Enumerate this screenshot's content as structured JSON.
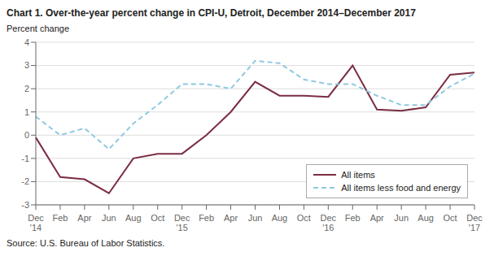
{
  "chart_data": {
    "type": "line",
    "title": "Chart 1. Over-the-year percent change in CPI-U, Detroit, December 2014–December 2017",
    "ylabel": "Percent change",
    "annotations": [
      "Source: U.S. Bureau of Labor Statistics."
    ],
    "categories": [
      "Dec\n'14",
      "Feb",
      "Apr",
      "Jun",
      "Aug",
      "Oct",
      "Dec\n'15",
      "Feb",
      "Apr",
      "Jun",
      "Aug",
      "Oct",
      "Dec\n'16",
      "Feb",
      "Apr",
      "Jun",
      "Aug",
      "Oct",
      "Dec\n'17"
    ],
    "series": [
      {
        "name": "All items",
        "color": "#7B2D42",
        "line_style": "solid",
        "values": [
          -0.1,
          -1.8,
          -1.9,
          -2.5,
          -1.0,
          -0.8,
          -0.8,
          0.0,
          1.0,
          2.3,
          1.7,
          1.7,
          1.65,
          3.0,
          1.1,
          1.05,
          1.2,
          2.6,
          2.7
        ]
      },
      {
        "name": "All items less food and energy",
        "color": "#90C8E0",
        "line_style": "dashed",
        "values": [
          0.8,
          0.0,
          0.3,
          -0.6,
          0.5,
          1.3,
          2.2,
          2.2,
          2.0,
          3.2,
          3.1,
          2.4,
          2.2,
          2.2,
          1.7,
          1.3,
          1.3,
          2.1,
          2.65
        ]
      }
    ],
    "ylim": [
      -3.0,
      4.0
    ],
    "yticks": [
      -3.0,
      -2.0,
      -1.0,
      0.0,
      1.0,
      2.0,
      3.0,
      4.0
    ],
    "grid": true,
    "legend": "lower right"
  }
}
